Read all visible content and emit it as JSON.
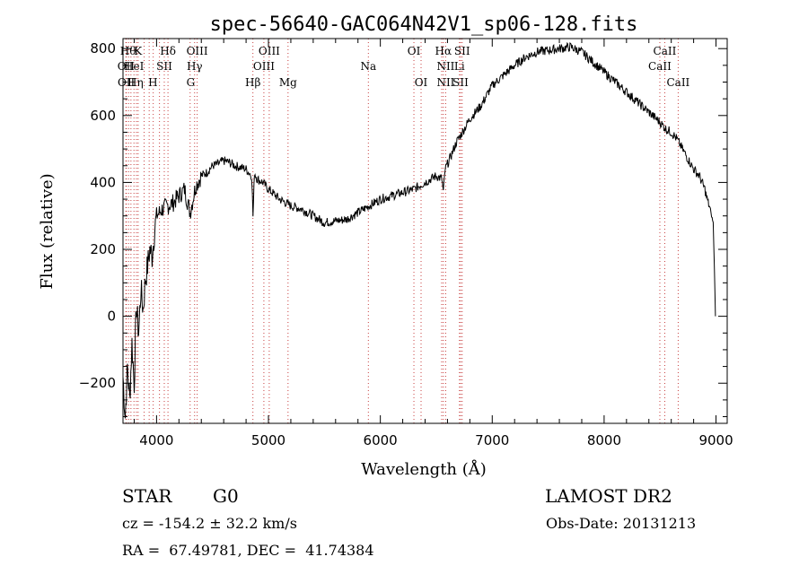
{
  "chart_data": {
    "type": "line",
    "title": "spec-56640-GAC064N42V1_sp06-128.fits",
    "xlabel": "Wavelength (Å)",
    "ylabel": "Flux (relative)",
    "xlim": [
      3700,
      9100
    ],
    "ylim": [
      -320,
      830
    ],
    "xticks": [
      4000,
      5000,
      6000,
      7000,
      8000,
      9000
    ],
    "yticks": [
      -200,
      0,
      200,
      400,
      600,
      800
    ],
    "grid": false,
    "series": [
      {
        "x": [
          3700,
          3720,
          3740,
          3760,
          3780,
          3800,
          3820,
          3840,
          3860,
          3880,
          3900,
          3920,
          3940,
          3960,
          3980,
          4000,
          4050,
          4100,
          4150,
          4200,
          4250,
          4300,
          4350,
          4400,
          4450,
          4500,
          4550,
          4600,
          4650,
          4700,
          4750,
          4800,
          4850,
          4862,
          4875,
          4900,
          4950,
          5000,
          5100,
          5200,
          5300,
          5400,
          5500,
          5600,
          5700,
          5800,
          5900,
          6000,
          6100,
          6200,
          6300,
          6400,
          6500,
          6550,
          6563,
          6580,
          6620,
          6680,
          6750,
          6800,
          6900,
          7000,
          7100,
          7200,
          7300,
          7400,
          7500,
          7600,
          7700,
          7800,
          7900,
          8000,
          8100,
          8200,
          8300,
          8400,
          8500,
          8550,
          8600,
          8650,
          8700,
          8750,
          8800,
          8850,
          8900,
          8920,
          8940,
          8960,
          8975,
          8985,
          8995
        ],
        "y": [
          -180,
          -300,
          -150,
          -250,
          -80,
          -200,
          30,
          -50,
          80,
          20,
          110,
          150,
          200,
          180,
          250,
          300,
          320,
          330,
          340,
          360,
          380,
          310,
          390,
          420,
          430,
          450,
          455,
          465,
          460,
          450,
          445,
          440,
          420,
          300,
          430,
          410,
          400,
          380,
          350,
          330,
          320,
          300,
          280,
          285,
          290,
          310,
          330,
          350,
          360,
          370,
          380,
          400,
          420,
          410,
          370,
          440,
          470,
          520,
          560,
          590,
          630,
          690,
          720,
          750,
          775,
          790,
          795,
          800,
          805,
          790,
          760,
          730,
          700,
          670,
          640,
          610,
          580,
          560,
          550,
          530,
          500,
          470,
          440,
          420,
          380,
          350,
          330,
          300,
          280,
          150,
          0
        ]
      }
    ],
    "line_groups": [
      {
        "lines": [
          3726,
          3730,
          3750,
          3771,
          3798,
          3820,
          3835,
          3889,
          3934,
          3970,
          4026,
          4069,
          4102
        ],
        "labels": [
          "Hθ",
          "K",
          "Hδ",
          "OII",
          "HeI",
          "SII",
          "OII",
          "Hη",
          "H"
        ]
      },
      {
        "lines": [
          4300,
          4340,
          4363
        ],
        "labels": [
          "OIII",
          "Hγ",
          "G"
        ]
      },
      {
        "lines": [
          4861,
          4959,
          5007,
          5175
        ],
        "labels": [
          "OIII",
          "OIII",
          "Hβ",
          "Mg"
        ]
      },
      {
        "lines": [
          5893
        ],
        "labels": [
          "Na"
        ]
      },
      {
        "lines": [
          6300,
          6364
        ],
        "labels": [
          "OI",
          "OI"
        ]
      },
      {
        "lines": [
          6548,
          6563,
          6584,
          6707,
          6717,
          6731
        ],
        "labels": [
          "Hα",
          "SII",
          "NII",
          "Li",
          "NII",
          "SII"
        ]
      },
      {
        "lines": [
          8498,
          8542,
          8662
        ],
        "labels": [
          "CaII",
          "CaII",
          "CaII"
        ]
      }
    ],
    "line_label_layout": [
      {
        "text": "Hθ",
        "x": 3745,
        "row": 0
      },
      {
        "text": "K",
        "x": 3834,
        "row": 0
      },
      {
        "text": "Hδ",
        "x": 4102,
        "row": 0
      },
      {
        "text": "OII",
        "x": 3727,
        "row": 1
      },
      {
        "text": "HeI",
        "x": 3798,
        "row": 1
      },
      {
        "text": "SII",
        "x": 4069,
        "row": 1
      },
      {
        "text": "OII",
        "x": 3729,
        "row": 2
      },
      {
        "text": "Hη",
        "x": 3811,
        "row": 2
      },
      {
        "text": "H",
        "x": 3968,
        "row": 2
      },
      {
        "text": "OIII",
        "x": 4363,
        "row": 0
      },
      {
        "text": "Hγ",
        "x": 4340,
        "row": 1
      },
      {
        "text": "G",
        "x": 4305,
        "row": 2
      },
      {
        "text": "OIII",
        "x": 5007,
        "row": 0
      },
      {
        "text": "OIII",
        "x": 4959,
        "row": 1
      },
      {
        "text": "Hβ",
        "x": 4861,
        "row": 2
      },
      {
        "text": "Mg",
        "x": 5175,
        "row": 2
      },
      {
        "text": "Na",
        "x": 5893,
        "row": 1
      },
      {
        "text": "OI",
        "x": 6300,
        "row": 0
      },
      {
        "text": "OI",
        "x": 6364,
        "row": 2
      },
      {
        "text": "Hα",
        "x": 6563,
        "row": 0
      },
      {
        "text": "SII",
        "x": 6731,
        "row": 0
      },
      {
        "text": "NII",
        "x": 6584,
        "row": 1
      },
      {
        "text": "Li",
        "x": 6707,
        "row": 1
      },
      {
        "text": "NII",
        "x": 6584,
        "row": 2
      },
      {
        "text": "SII",
        "x": 6717,
        "row": 2
      },
      {
        "text": "CaII",
        "x": 8542,
        "row": 0
      },
      {
        "text": "CaII",
        "x": 8498,
        "row": 1
      },
      {
        "text": "CaII",
        "x": 8662,
        "row": 2
      }
    ],
    "colors": {
      "spectrum": "#000000",
      "lines": "#c84040",
      "axes": "#000000"
    }
  },
  "info": {
    "object_class": "STAR",
    "subclass": "G0",
    "survey": "LAMOST DR2",
    "cz": "cz = -154.2 ± 32.2 km/s",
    "obs_date": "Obs-Date: 20131213",
    "coords": "RA =  67.49781, DEC =  41.74384"
  }
}
